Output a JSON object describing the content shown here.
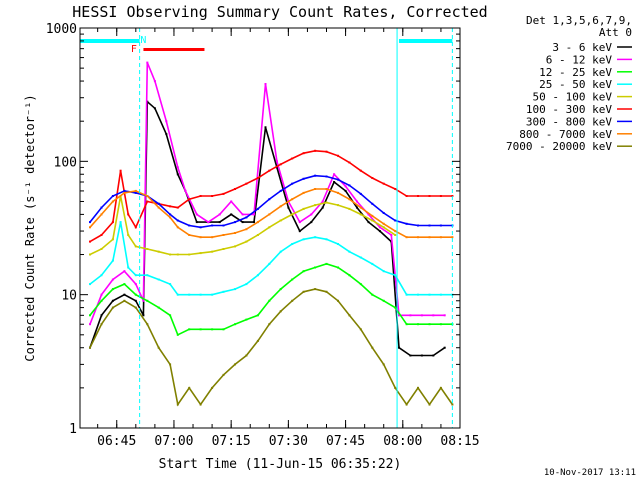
{
  "chart_data": {
    "type": "line",
    "title": "HESSI Observing Summary Count Rates, Corrected",
    "xlabel": "Start Time (11-Jun-15 06:35:22)",
    "ylabel": "Corrected Count Rate (s⁻¹ detector⁻¹)",
    "y_scale": "log",
    "ylim": [
      1,
      1000
    ],
    "xlim": [
      "06:35:22",
      "08:15:00"
    ],
    "x_ticks": [
      "06:45",
      "07:00",
      "07:15",
      "07:30",
      "07:45",
      "08:00",
      "08:15"
    ],
    "y_ticks": [
      "1",
      "10",
      "100",
      "1000"
    ],
    "legend_header": [
      "Det 1,3,5,6,7,9,",
      "Att 0"
    ],
    "legend_position": "right",
    "footer_timestamp": "10-Nov-2017 13:11",
    "annotations": {
      "night_bars": [
        {
          "from": "06:35:22",
          "to": "06:51:00",
          "color": "#00ffff"
        },
        {
          "from": "07:59:00",
          "to": "08:13:00",
          "color": "#00ffff"
        }
      ],
      "flag_letters": [
        {
          "text": "F",
          "at": "06:49:30",
          "color": "#ff0000"
        },
        {
          "text": "N",
          "at": "06:52:00",
          "color": "#00ffff"
        }
      ],
      "flare_bar": {
        "from": "06:52:00",
        "to": "07:08:00",
        "color": "#ff0000"
      },
      "vertical_lines": [
        {
          "at": "06:51:00",
          "style": "dashed"
        },
        {
          "at": "07:58:30",
          "style": "solid"
        },
        {
          "at": "08:13:00",
          "style": "dashed"
        }
      ]
    },
    "series": [
      {
        "name": "3 - 6 keV",
        "color": "#000000",
        "x": [
          "06:38",
          "06:41",
          "06:44",
          "06:47",
          "06:50",
          "06:52",
          "06:53",
          "06:55",
          "06:58",
          "07:01",
          "07:03",
          "07:06",
          "07:09",
          "07:12",
          "07:15",
          "07:18",
          "07:21",
          "07:24",
          "07:27",
          "07:30",
          "07:33",
          "07:36",
          "07:39",
          "07:42",
          "07:45",
          "07:48",
          "07:51",
          "07:54",
          "07:57",
          "07:59",
          "08:02",
          "08:05",
          "08:08",
          "08:11"
        ],
        "y": [
          4,
          7,
          9,
          10,
          9,
          7,
          280,
          250,
          160,
          80,
          60,
          35,
          35,
          35,
          40,
          35,
          35,
          180,
          90,
          45,
          30,
          35,
          45,
          70,
          60,
          45,
          35,
          30,
          25,
          4,
          3.5,
          3.5,
          3.5,
          4
        ]
      },
      {
        "name": "6 - 12 keV",
        "color": "#ff00ff",
        "x": [
          "06:38",
          "06:41",
          "06:44",
          "06:47",
          "06:50",
          "06:52",
          "06:53",
          "06:55",
          "06:58",
          "07:01",
          "07:03",
          "07:06",
          "07:09",
          "07:12",
          "07:15",
          "07:18",
          "07:21",
          "07:24",
          "07:27",
          "07:30",
          "07:33",
          "07:36",
          "07:39",
          "07:42",
          "07:45",
          "07:48",
          "07:51",
          "07:54",
          "07:57",
          "07:59",
          "08:02",
          "08:05",
          "08:08",
          "08:11"
        ],
        "y": [
          6,
          10,
          13,
          15,
          12,
          9,
          550,
          400,
          200,
          90,
          60,
          40,
          35,
          40,
          50,
          40,
          40,
          380,
          100,
          50,
          35,
          40,
          50,
          80,
          65,
          50,
          40,
          32,
          28,
          7,
          7,
          7,
          7,
          7
        ]
      },
      {
        "name": "12 - 25 keV",
        "color": "#00ff00",
        "x": [
          "06:38",
          "06:41",
          "06:44",
          "06:47",
          "06:50",
          "06:53",
          "06:56",
          "06:59",
          "07:01",
          "07:04",
          "07:07",
          "07:10",
          "07:13",
          "07:16",
          "07:19",
          "07:22",
          "07:25",
          "07:28",
          "07:31",
          "07:34",
          "07:37",
          "07:40",
          "07:43",
          "07:46",
          "07:49",
          "07:52",
          "07:55",
          "07:58",
          "08:01",
          "08:04",
          "08:07",
          "08:10",
          "08:13"
        ],
        "y": [
          7,
          9,
          11,
          12,
          10,
          9,
          8,
          7,
          5,
          5.5,
          5.5,
          5.5,
          5.5,
          6,
          6.5,
          7,
          9,
          11,
          13,
          15,
          16,
          17,
          16,
          14,
          12,
          10,
          9,
          8,
          6,
          6,
          6,
          6,
          6
        ]
      },
      {
        "name": "25 - 50 keV",
        "color": "#00ffff",
        "x": [
          "06:38",
          "06:41",
          "06:44",
          "06:46",
          "06:48",
          "06:50",
          "06:53",
          "06:56",
          "06:59",
          "07:01",
          "07:04",
          "07:07",
          "07:10",
          "07:13",
          "07:16",
          "07:19",
          "07:22",
          "07:25",
          "07:28",
          "07:31",
          "07:34",
          "07:37",
          "07:40",
          "07:43",
          "07:46",
          "07:49",
          "07:52",
          "07:55",
          "07:58",
          "08:01",
          "08:04",
          "08:07",
          "08:10",
          "08:13"
        ],
        "y": [
          12,
          14,
          18,
          35,
          16,
          14,
          14,
          13,
          12,
          10,
          10,
          10,
          10,
          10.5,
          11,
          12,
          14,
          17,
          21,
          24,
          26,
          27,
          26,
          24,
          21,
          19,
          17,
          15,
          14,
          10,
          10,
          10,
          10,
          10
        ]
      },
      {
        "name": "50 - 100 keV",
        "color": "#cccc00",
        "x": [
          "06:38",
          "06:41",
          "06:44",
          "06:46",
          "06:48",
          "06:50",
          "06:53",
          "06:56",
          "06:59",
          "07:01",
          "07:04",
          "07:07",
          "07:10",
          "07:13",
          "07:16",
          "07:19",
          "07:22",
          "07:25",
          "07:28",
          "07:31",
          "07:34",
          "07:37",
          "07:40",
          "07:43",
          "07:46",
          "07:49",
          "07:52",
          "07:55",
          "07:58"
        ],
        "y": [
          20,
          22,
          26,
          55,
          28,
          23,
          22,
          21,
          20,
          20,
          20,
          20.5,
          21,
          22,
          23,
          25,
          28,
          32,
          36,
          40,
          44,
          47,
          49,
          47,
          44,
          40,
          36,
          32,
          28
        ]
      },
      {
        "name": "100 - 300 keV",
        "color": "#ff0000",
        "x": [
          "06:38",
          "06:41",
          "06:44",
          "06:46",
          "06:48",
          "06:50",
          "06:53",
          "06:56",
          "06:59",
          "07:01",
          "07:04",
          "07:07",
          "07:10",
          "07:13",
          "07:16",
          "07:19",
          "07:22",
          "07:25",
          "07:28",
          "07:31",
          "07:34",
          "07:37",
          "07:40",
          "07:43",
          "07:46",
          "07:49",
          "07:52",
          "07:55",
          "07:58",
          "08:01",
          "08:04",
          "08:07",
          "08:10",
          "08:13"
        ],
        "y": [
          25,
          28,
          35,
          85,
          40,
          32,
          50,
          48,
          46,
          45,
          52,
          55,
          55,
          57,
          62,
          68,
          75,
          85,
          95,
          105,
          115,
          120,
          118,
          110,
          98,
          85,
          75,
          68,
          62,
          55,
          55,
          55,
          55,
          55
        ]
      },
      {
        "name": "300 - 800 keV",
        "color": "#0000ff",
        "x": [
          "06:38",
          "06:41",
          "06:44",
          "06:47",
          "06:50",
          "06:53",
          "06:56",
          "06:59",
          "07:01",
          "07:04",
          "07:07",
          "07:10",
          "07:13",
          "07:16",
          "07:19",
          "07:22",
          "07:25",
          "07:28",
          "07:31",
          "07:34",
          "07:37",
          "07:40",
          "07:43",
          "07:46",
          "07:49",
          "07:52",
          "07:55",
          "07:58",
          "08:01",
          "08:04",
          "08:07",
          "08:10",
          "08:13"
        ],
        "y": [
          35,
          45,
          55,
          60,
          58,
          55,
          48,
          40,
          36,
          33,
          32,
          33,
          33,
          35,
          38,
          44,
          52,
          60,
          68,
          74,
          78,
          77,
          73,
          66,
          57,
          48,
          41,
          36,
          34,
          33,
          33,
          33,
          33
        ]
      },
      {
        "name": "800 - 7000 keV",
        "color": "#ff8000",
        "x": [
          "06:38",
          "06:41",
          "06:44",
          "06:47",
          "06:50",
          "06:53",
          "06:56",
          "06:59",
          "07:01",
          "07:04",
          "07:07",
          "07:10",
          "07:13",
          "07:16",
          "07:19",
          "07:22",
          "07:25",
          "07:28",
          "07:31",
          "07:34",
          "07:37",
          "07:40",
          "07:43",
          "07:46",
          "07:49",
          "07:52",
          "07:55",
          "07:58",
          "08:01",
          "08:04",
          "08:07",
          "08:10",
          "08:13"
        ],
        "y": [
          32,
          40,
          50,
          58,
          60,
          55,
          45,
          38,
          32,
          28,
          27,
          27,
          28,
          29,
          31,
          35,
          40,
          46,
          52,
          58,
          62,
          62,
          58,
          52,
          45,
          39,
          34,
          30,
          27,
          27,
          27,
          27,
          27
        ]
      },
      {
        "name": "7000 - 20000 keV",
        "color": "#808000",
        "x": [
          "06:38",
          "06:41",
          "06:44",
          "06:47",
          "06:50",
          "06:53",
          "06:56",
          "06:59",
          "07:01",
          "07:04",
          "07:07",
          "07:10",
          "07:13",
          "07:16",
          "07:19",
          "07:22",
          "07:25",
          "07:28",
          "07:31",
          "07:34",
          "07:37",
          "07:40",
          "07:43",
          "07:46",
          "07:49",
          "07:52",
          "07:55",
          "07:58",
          "08:01",
          "08:04",
          "08:07",
          "08:10",
          "08:13"
        ],
        "y": [
          4,
          6,
          8,
          9,
          8,
          6,
          4,
          3,
          1.5,
          2,
          1.5,
          2,
          2.5,
          3,
          3.5,
          4.5,
          6,
          7.5,
          9,
          10.5,
          11,
          10.5,
          9,
          7,
          5.5,
          4,
          3,
          2,
          1.5,
          2,
          1.5,
          2,
          1.5
        ]
      }
    ]
  }
}
